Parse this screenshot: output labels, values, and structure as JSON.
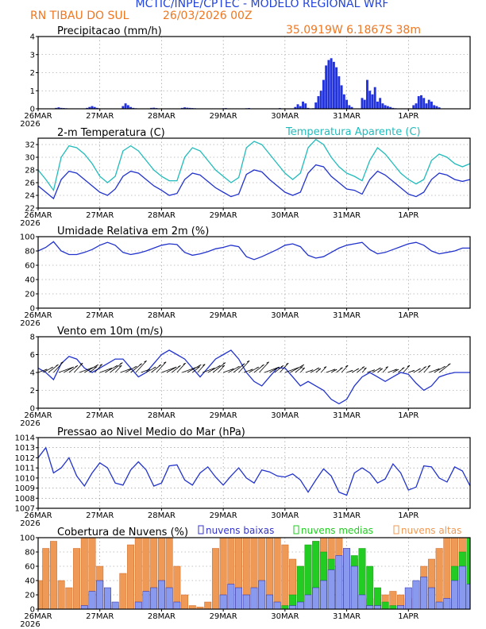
{
  "header": {
    "title": "MCTIC/INPE/CPTEC - MODELO REGIONAL WRF",
    "location": "RN TIBAU DO SUL",
    "run": "26/03/2026 00Z",
    "coords": "35.0919W 6.1867S 38m"
  },
  "colors": {
    "title": "#2244dd",
    "accent": "#ee7722",
    "temperature": "#2233cc",
    "apparent": "#22bbbb",
    "low_clouds": "#3333cc",
    "mid_clouds": "#22cc22",
    "high_clouds": "#ee9955"
  },
  "x_axis": {
    "labels": [
      "26MAR",
      "27MAR",
      "28MAR",
      "29MAR",
      "30MAR",
      "31MAR",
      "1APR"
    ],
    "year": "2026",
    "hours_total": 168
  },
  "chart_data": [
    {
      "id": "precip",
      "type": "bar",
      "title": "Precipitacao (mm/h)",
      "ylim": [
        0,
        4
      ],
      "yticks": [
        0,
        1,
        2,
        3,
        4
      ],
      "x_hours": [
        7,
        8,
        9,
        10,
        11,
        19,
        20,
        21,
        22,
        23,
        33,
        34,
        35,
        36,
        37,
        38,
        39,
        44,
        45,
        46,
        56,
        57,
        58,
        59,
        60,
        61,
        62,
        72,
        73,
        76,
        81,
        82,
        93,
        94,
        95,
        96,
        100,
        101,
        102,
        103,
        104,
        105,
        106,
        107,
        108,
        109,
        110,
        111,
        112,
        113,
        114,
        115,
        116,
        117,
        118,
        119,
        120,
        121,
        122,
        126,
        127,
        128,
        129,
        130,
        131,
        132,
        133,
        134,
        135,
        136,
        137,
        138,
        139,
        146,
        147,
        148,
        149,
        150,
        151,
        152,
        153,
        154,
        155,
        156
      ],
      "values": [
        0.05,
        0.08,
        0.05,
        0.04,
        0.03,
        0.05,
        0.1,
        0.15,
        0.1,
        0.05,
        0.15,
        0.3,
        0.2,
        0.1,
        0.05,
        0.03,
        0.02,
        0.05,
        0.06,
        0.04,
        0.05,
        0.08,
        0.06,
        0.05,
        0.04,
        0.03,
        0.02,
        0.03,
        0.04,
        0.02,
        0.03,
        0.04,
        0.02,
        0.04,
        0.02,
        0.01,
        0.1,
        0.25,
        0.15,
        0.4,
        0.3,
        0.05,
        0.02,
        0.03,
        0.35,
        0.7,
        1.0,
        1.6,
        2.4,
        2.7,
        2.8,
        2.6,
        2.3,
        1.8,
        1.3,
        0.8,
        0.5,
        0.2,
        0.1,
        0.6,
        0.5,
        1.6,
        1.0,
        0.8,
        1.2,
        0.4,
        0.6,
        0.3,
        0.2,
        0.15,
        0.1,
        0.05,
        0.03,
        0.2,
        0.3,
        0.7,
        0.75,
        0.6,
        0.3,
        0.5,
        0.4,
        0.2,
        0.15,
        0.08
      ]
    },
    {
      "id": "temp",
      "type": "line",
      "title": "2-m Temperatura (C)",
      "legend": "Temperatura Aparente (C)",
      "ylim": [
        22,
        33
      ],
      "yticks": [
        22,
        24,
        26,
        28,
        30,
        32
      ],
      "series": [
        {
          "name": "Temperatura",
          "x": [
            0,
            3,
            6,
            9,
            12,
            15,
            18,
            21,
            24,
            27,
            30,
            33,
            36,
            39,
            42,
            45,
            48,
            51,
            54,
            57,
            60,
            63,
            66,
            69,
            72,
            75,
            78,
            81,
            84,
            87,
            90,
            93,
            96,
            99,
            102,
            105,
            108,
            111,
            114,
            117,
            120,
            123,
            126,
            129,
            132,
            135,
            138,
            141,
            144,
            147,
            150,
            153,
            156,
            159,
            162,
            165,
            168
          ],
          "values": [
            25.5,
            24.5,
            23.5,
            26.5,
            27.8,
            27.5,
            26.5,
            25.5,
            24.5,
            24,
            25,
            27,
            27.8,
            27.5,
            26.5,
            25.5,
            24.8,
            24,
            24.3,
            26.5,
            27.5,
            27.2,
            26.2,
            25.2,
            24.5,
            23.8,
            24.2,
            27.3,
            28,
            27.7,
            26.5,
            25.5,
            24.5,
            24,
            24.5,
            27.5,
            28.8,
            28.5,
            27,
            26,
            25,
            24.8,
            24.2,
            26.5,
            27.8,
            27.2,
            26.2,
            25.2,
            24.2,
            23.8,
            24.5,
            26.5,
            27.5,
            27.2,
            26.5,
            26.2,
            26.5
          ]
        },
        {
          "name": "Temperatura Aparente",
          "x": [
            0,
            3,
            6,
            9,
            12,
            15,
            18,
            21,
            24,
            27,
            30,
            33,
            36,
            39,
            42,
            45,
            48,
            51,
            54,
            57,
            60,
            63,
            66,
            69,
            72,
            75,
            78,
            81,
            84,
            87,
            90,
            93,
            96,
            99,
            102,
            105,
            108,
            111,
            114,
            117,
            120,
            123,
            126,
            129,
            132,
            135,
            138,
            141,
            144,
            147,
            150,
            153,
            156,
            159,
            162,
            165,
            168
          ],
          "values": [
            28,
            26.5,
            24.8,
            30,
            31.8,
            31.5,
            30.5,
            29,
            27,
            26,
            27,
            31,
            31.8,
            31,
            29.5,
            28,
            27,
            26.3,
            26.3,
            30,
            31.5,
            31,
            29.5,
            28,
            27,
            26,
            26.8,
            31.5,
            32.5,
            32,
            30.5,
            29,
            27.5,
            26.5,
            27.5,
            31.5,
            32.8,
            32,
            30,
            28.5,
            27.5,
            27,
            26.3,
            29.5,
            31.5,
            30.5,
            29,
            27.5,
            26.5,
            25.8,
            26.5,
            29.5,
            30.5,
            30,
            29,
            28.5,
            29
          ]
        }
      ]
    },
    {
      "id": "rh",
      "type": "line",
      "title": "Umidade Relativa em 2m (%)",
      "ylim": [
        0,
        100
      ],
      "yticks": [
        0,
        20,
        40,
        60,
        80,
        100
      ],
      "series": [
        {
          "name": "Umidade",
          "x": [
            0,
            3,
            6,
            9,
            12,
            15,
            18,
            21,
            24,
            27,
            30,
            33,
            36,
            39,
            42,
            45,
            48,
            51,
            54,
            57,
            60,
            63,
            66,
            69,
            72,
            75,
            78,
            81,
            84,
            87,
            90,
            93,
            96,
            99,
            102,
            105,
            108,
            111,
            114,
            117,
            120,
            123,
            126,
            129,
            132,
            135,
            138,
            141,
            144,
            147,
            150,
            153,
            156,
            159,
            162,
            165,
            168
          ],
          "values": [
            80,
            85,
            93,
            80,
            75,
            75,
            78,
            82,
            88,
            92,
            88,
            78,
            75,
            77,
            80,
            84,
            88,
            90,
            89,
            78,
            74,
            76,
            79,
            83,
            85,
            88,
            86,
            72,
            68,
            72,
            77,
            82,
            88,
            90,
            86,
            74,
            70,
            72,
            78,
            84,
            88,
            90,
            92,
            82,
            76,
            78,
            82,
            86,
            90,
            92,
            88,
            80,
            76,
            78,
            80,
            84,
            84
          ]
        }
      ]
    },
    {
      "id": "wind",
      "type": "line",
      "title": "Vento em 10m (m/s)",
      "ylim": [
        0,
        8
      ],
      "yticks": [
        0,
        2,
        4,
        6,
        8
      ],
      "series": [
        {
          "name": "Vento",
          "x": [
            0,
            3,
            6,
            9,
            12,
            15,
            18,
            21,
            24,
            27,
            30,
            33,
            36,
            39,
            42,
            45,
            48,
            51,
            54,
            57,
            60,
            63,
            66,
            69,
            72,
            75,
            78,
            81,
            84,
            87,
            90,
            93,
            96,
            99,
            102,
            105,
            108,
            111,
            114,
            117,
            120,
            123,
            126,
            129,
            132,
            135,
            138,
            141,
            144,
            147,
            150,
            153,
            156,
            159,
            162,
            165,
            168
          ],
          "values": [
            4.5,
            4,
            3.2,
            5,
            5.8,
            5.5,
            4.5,
            4,
            4.5,
            5,
            5.5,
            5.5,
            4.5,
            3.5,
            4,
            5,
            6,
            6.5,
            6,
            5.5,
            4.5,
            3.5,
            4.5,
            5.5,
            6,
            6.5,
            5.5,
            4,
            3,
            2.5,
            3.5,
            4.5,
            4.5,
            3.5,
            2.5,
            3,
            2.5,
            2,
            1,
            0.5,
            1,
            2.5,
            3.5,
            4,
            3.5,
            3,
            3.5,
            4,
            3.8,
            2.8,
            2,
            2.5,
            3.5,
            3.8,
            4,
            4,
            4
          ]
        }
      ]
    },
    {
      "id": "pres",
      "type": "line",
      "title": "Pressao ao Nivel Medio do Mar (hPa)",
      "ylim": [
        1007,
        1014
      ],
      "yticks": [
        1007,
        1008,
        1009,
        1010,
        1011,
        1012,
        1013,
        1014
      ],
      "series": [
        {
          "name": "Pressao",
          "x": [
            0,
            3,
            6,
            9,
            12,
            15,
            18,
            21,
            24,
            27,
            30,
            33,
            36,
            39,
            42,
            45,
            48,
            51,
            54,
            57,
            60,
            63,
            66,
            69,
            72,
            75,
            78,
            81,
            84,
            87,
            90,
            93,
            96,
            99,
            102,
            105,
            108,
            111,
            114,
            117,
            120,
            123,
            126,
            129,
            132,
            135,
            138,
            141,
            144,
            147,
            150,
            153,
            156,
            159,
            162,
            165,
            168
          ],
          "values": [
            1012,
            1013,
            1010.5,
            1011,
            1012,
            1010.2,
            1009.2,
            1010.5,
            1011.5,
            1011,
            1009.5,
            1009.3,
            1010.8,
            1011.6,
            1010.8,
            1009.2,
            1009.5,
            1011.2,
            1011.3,
            1009.8,
            1009.3,
            1010.5,
            1011.1,
            1010.1,
            1009.3,
            1010.2,
            1011,
            1010,
            1009.5,
            1010.8,
            1010.6,
            1010.2,
            1010.1,
            1010.4,
            1009.8,
            1008.6,
            1009.8,
            1010.9,
            1010.2,
            1008.6,
            1008.3,
            1010.5,
            1011,
            1010.5,
            1009.5,
            1009.9,
            1011.4,
            1010.5,
            1008.8,
            1009.1,
            1011.2,
            1011.1,
            1010,
            1009.6,
            1011.1,
            1010.7,
            1009.2
          ]
        }
      ]
    },
    {
      "id": "clouds",
      "type": "bar",
      "title": "Cobertura de Nuvens (%)",
      "legend": [
        "nuvens baixas",
        "nuvens medias",
        "nuvens altas"
      ],
      "ylim": [
        0,
        100
      ],
      "yticks": [
        0,
        20,
        40,
        60,
        80,
        100
      ],
      "x": [
        0,
        3,
        6,
        9,
        12,
        15,
        18,
        21,
        24,
        27,
        30,
        33,
        36,
        39,
        42,
        45,
        48,
        51,
        54,
        57,
        60,
        63,
        66,
        69,
        72,
        75,
        78,
        81,
        84,
        87,
        90,
        93,
        96,
        99,
        102,
        105,
        108,
        111,
        114,
        117,
        120,
        123,
        126,
        129,
        132,
        135,
        138,
        141,
        144,
        147,
        150,
        153,
        156,
        159,
        162,
        165,
        168
      ],
      "series": [
        {
          "name": "nuvens altas",
          "values": [
            40,
            85,
            95,
            40,
            30,
            85,
            100,
            100,
            60,
            20,
            5,
            50,
            90,
            100,
            100,
            100,
            100,
            100,
            60,
            20,
            5,
            3,
            10,
            85,
            100,
            100,
            100,
            100,
            100,
            100,
            100,
            100,
            90,
            70,
            60,
            80,
            95,
            100,
            100,
            100,
            85,
            70,
            40,
            15,
            15,
            20,
            25,
            20,
            15,
            30,
            60,
            70,
            85,
            100,
            100,
            100,
            100
          ]
        },
        {
          "name": "nuvens medias",
          "values": [
            0,
            0,
            0,
            0,
            0,
            0,
            0,
            0,
            0,
            0,
            0,
            0,
            0,
            0,
            0,
            0,
            0,
            0,
            0,
            0,
            0,
            0,
            0,
            0,
            0,
            0,
            0,
            0,
            0,
            0,
            0,
            0,
            5,
            20,
            60,
            90,
            95,
            80,
            70,
            60,
            65,
            75,
            85,
            60,
            30,
            10,
            5,
            0,
            0,
            0,
            0,
            0,
            0,
            10,
            60,
            80,
            100
          ]
        },
        {
          "name": "nuvens baixas",
          "values": [
            0,
            0,
            0,
            0,
            0,
            0,
            5,
            25,
            40,
            30,
            10,
            0,
            0,
            10,
            25,
            30,
            40,
            30,
            10,
            0,
            0,
            0,
            0,
            0,
            20,
            35,
            30,
            20,
            30,
            40,
            20,
            10,
            0,
            5,
            10,
            20,
            30,
            40,
            55,
            75,
            85,
            60,
            20,
            5,
            5,
            0,
            0,
            5,
            30,
            40,
            45,
            30,
            10,
            15,
            40,
            60,
            35
          ]
        }
      ]
    }
  ]
}
